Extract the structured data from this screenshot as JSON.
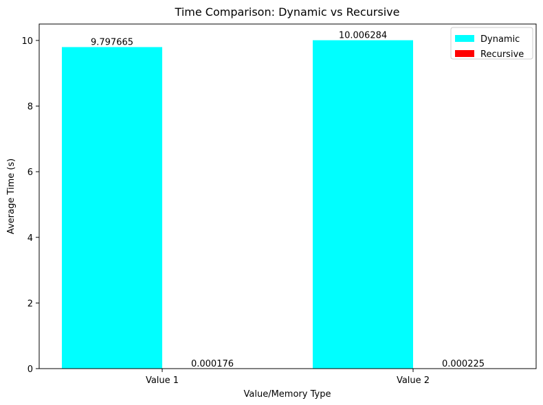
{
  "chart_data": {
    "type": "bar",
    "title": "Time Comparison: Dynamic vs Recursive",
    "xlabel": "Value/Memory Type",
    "ylabel": "Average Time (s)",
    "categories": [
      "Value 1",
      "Value 2"
    ],
    "series": [
      {
        "name": "Dynamic",
        "color": "#00ffff",
        "values": [
          9.797665,
          10.006284
        ],
        "labels": [
          "9.797665",
          "10.006284"
        ]
      },
      {
        "name": "Recursive",
        "color": "#ff0000",
        "values": [
          0.000176,
          0.000225
        ],
        "labels": [
          "0.000176",
          "0.000225"
        ]
      }
    ],
    "ylim": [
      0,
      10.5
    ],
    "yticks": [
      0,
      2,
      4,
      6,
      8,
      10
    ],
    "ytick_labels": [
      "0",
      "2",
      "4",
      "6",
      "8",
      "10"
    ],
    "grid": false,
    "legend_position": "top-right"
  }
}
